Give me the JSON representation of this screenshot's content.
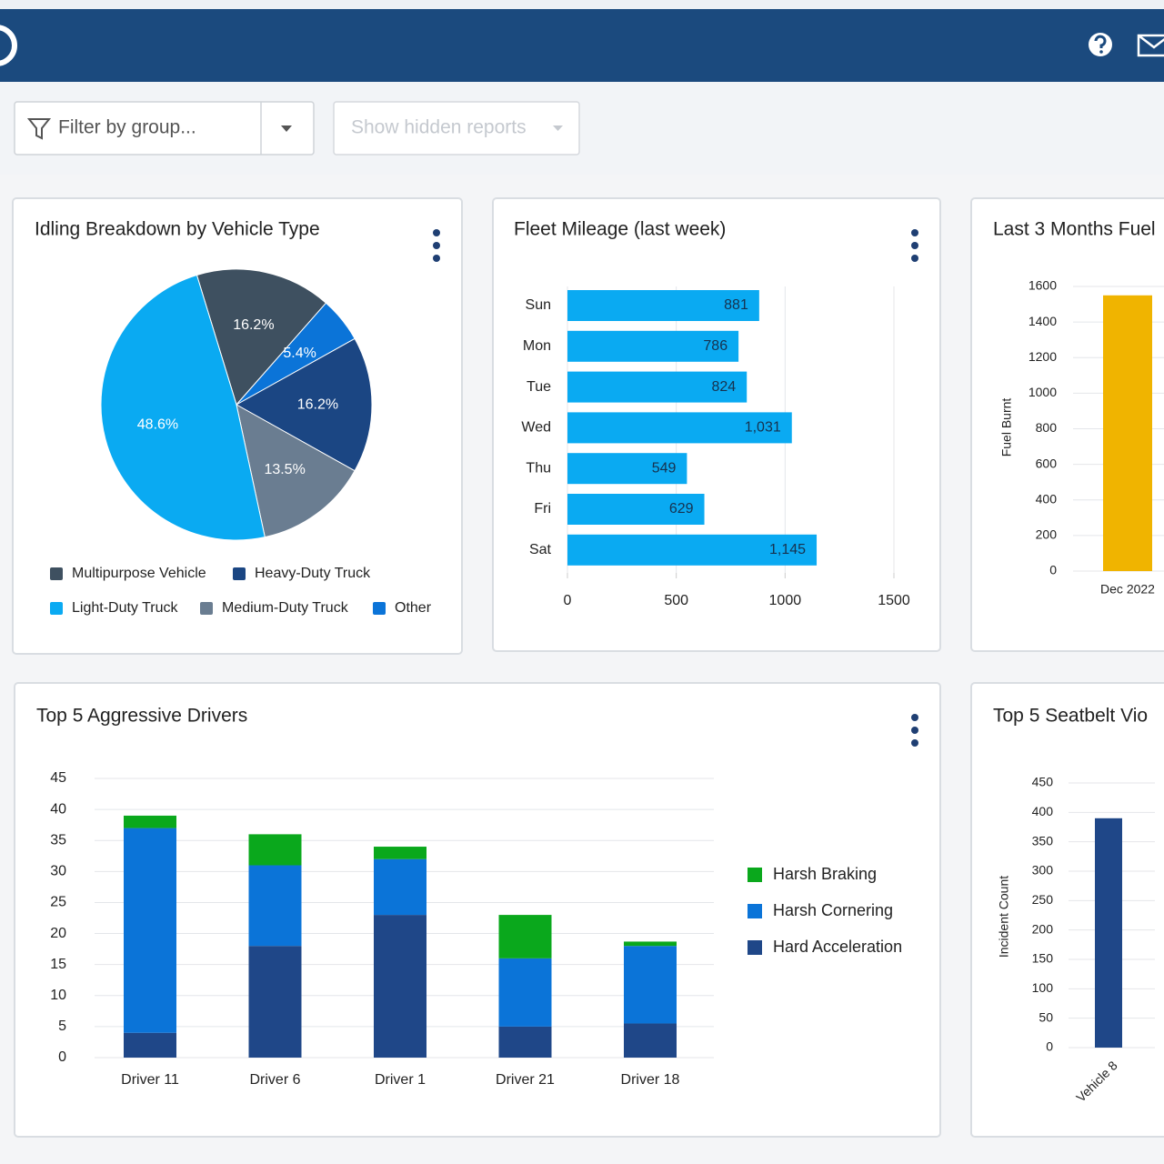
{
  "toolbar": {
    "filter": "Filter by group...",
    "hidden": "Show hidden reports"
  },
  "chart_data": [
    {
      "type": "pie",
      "title": "Idling Breakdown by Vehicle Type",
      "categories": [
        "Multipurpose Vehicle",
        "Other",
        "Heavy-Duty Truck",
        "Medium-Duty Truck",
        "Light-Duty Truck"
      ],
      "values": [
        16.2,
        5.4,
        16.2,
        13.5,
        48.6
      ],
      "value_labels": [
        "16.2%",
        "5.4%",
        "16.2%",
        "13.5%",
        "48.6%"
      ],
      "colors": [
        "#3e5060",
        "#0b74d8",
        "#1b4683",
        "#6a7d91",
        "#0aaaf2"
      ]
    },
    {
      "type": "bar",
      "orientation": "horizontal",
      "title": "Fleet Mileage (last week)",
      "categories": [
        "Sun",
        "Mon",
        "Tue",
        "Wed",
        "Thu",
        "Fri",
        "Sat"
      ],
      "values": [
        881,
        786,
        824,
        1031,
        549,
        629,
        1145
      ],
      "value_labels": [
        "881",
        "786",
        "824",
        "1,031",
        "549",
        "629",
        "1,145"
      ],
      "color": "#0aaaf2",
      "xlim": [
        0,
        1500
      ],
      "xticks": [
        0,
        500,
        1000,
        1500
      ],
      "grid": true
    },
    {
      "type": "bar",
      "title": "Last 3 Months Fuel",
      "y_label": "Fuel Burnt",
      "categories": [
        "Dec 2022"
      ],
      "values": [
        1550
      ],
      "color": "#f0b400",
      "ylim": [
        0,
        1600
      ],
      "yticks": [
        0,
        200,
        400,
        600,
        800,
        1000,
        1200,
        1400,
        1600
      ],
      "grid": true
    },
    {
      "type": "stacked_bar",
      "title": "Top 5 Aggressive Drivers",
      "categories": [
        "Driver 11",
        "Driver 6",
        "Driver 1",
        "Driver 21",
        "Driver 18"
      ],
      "series": [
        {
          "name": "Hard Acceleration",
          "color": "#1f4788",
          "values": [
            4,
            18,
            23,
            5,
            5.5
          ]
        },
        {
          "name": "Harsh Cornering",
          "color": "#0b74d8",
          "values": [
            33,
            13,
            9,
            11,
            12.5
          ]
        },
        {
          "name": "Harsh Braking",
          "color": "#0aa81c",
          "values": [
            2,
            5,
            2,
            7,
            0.7
          ]
        }
      ],
      "ylim": [
        0,
        45
      ],
      "yticks": [
        0,
        5,
        10,
        15,
        20,
        25,
        30,
        35,
        40,
        45
      ],
      "grid": true
    },
    {
      "type": "bar",
      "title": "Top 5 Seatbelt Vio",
      "y_label": "Incident Count",
      "categories": [
        "Vehicle 8"
      ],
      "values": [
        390
      ],
      "color": "#1f4788",
      "ylim": [
        0,
        450
      ],
      "yticks": [
        0,
        50,
        100,
        150,
        200,
        250,
        300,
        350,
        400,
        450
      ],
      "grid": true
    }
  ]
}
